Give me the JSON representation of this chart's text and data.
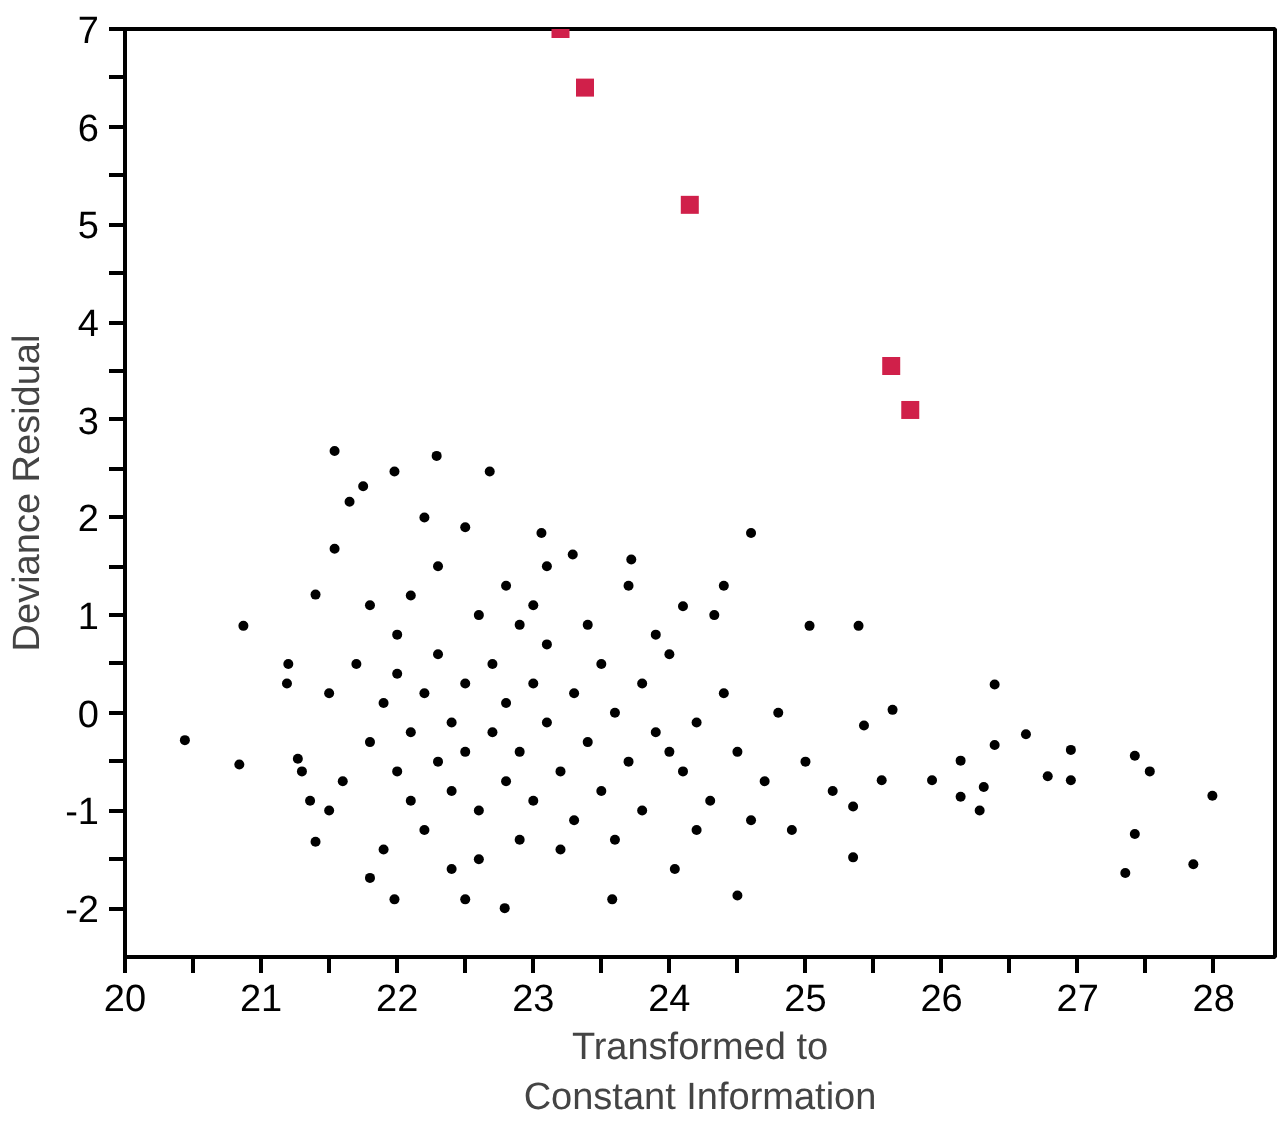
{
  "chart_data": {
    "type": "scatter",
    "xlabel": "Transformed to\nConstant Information",
    "ylabel": "Deviance Residual",
    "marker": "circle",
    "xlim": [
      20,
      28.45
    ],
    "ylim": [
      -2.5,
      7
    ],
    "xticks": [
      20,
      {
        "value": 20.5,
        "label": null
      },
      21,
      {
        "value": 21.5,
        "label": null
      },
      22,
      {
        "value": 22.5,
        "label": null
      },
      23,
      {
        "value": 23.5,
        "label": null
      },
      24,
      {
        "value": 24.5,
        "label": null
      },
      25,
      {
        "value": 25.5,
        "label": null
      },
      26,
      {
        "value": 26.5,
        "label": null
      },
      27,
      {
        "value": 27.5,
        "label": null
      },
      28
    ],
    "yticks": [
      -2,
      {
        "value": -1.5,
        "label": null
      },
      -1,
      {
        "value": -0.5,
        "label": null
      },
      0,
      {
        "value": 0.5,
        "label": null
      },
      1,
      {
        "value": 1.5,
        "label": null
      },
      2,
      {
        "value": 2.5,
        "label": null
      },
      3,
      {
        "value": 3.5,
        "label": null
      },
      4,
      {
        "value": 4.5,
        "label": null
      },
      5,
      {
        "value": 5.5,
        "label": null
      },
      6,
      {
        "value": 6.5,
        "label": null
      },
      7
    ],
    "series": [
      {
        "color": "#000000",
        "x": [
          24.6,
          26.39,
          26.62,
          26.95,
          26.95,
          26.78,
          27.42,
          27.53,
          27.99,
          27.42,
          27.35,
          27.85,
          26.14,
          26.14,
          26.28,
          26.31,
          25.93,
          25.64,
          26.39,
          25.39,
          25.03,
          25.43,
          25.35,
          24.5,
          25.56,
          25.35,
          21.54,
          22.29,
          22.68,
          21.98,
          21.65,
          21.75,
          23.06,
          23.72,
          23.29,
          21.54,
          21.4,
          20.87,
          20.44,
          20.84,
          21.19,
          21.27,
          21.36,
          21.4,
          21.8,
          21.98,
          22.79,
          23.58,
          24.04,
          24.33,
          24.1,
          22.5,
          21.7,
          21.8,
          21.9,
          22.0,
          22.0,
          22.1,
          22.1,
          22.2,
          22.2,
          22.3,
          22.3,
          22.4,
          22.4,
          22.5,
          22.5,
          22.6,
          22.6,
          22.7,
          22.7,
          22.8,
          22.8,
          22.9,
          22.9,
          23.0,
          23.0,
          23.1,
          23.1,
          23.2,
          23.3,
          23.3,
          23.4,
          23.5,
          23.5,
          23.6,
          23.7,
          23.8,
          23.8,
          23.9,
          24.0,
          24.1,
          24.2,
          24.3,
          24.4,
          24.5,
          24.7,
          24.8,
          21.6,
          21.5,
          21.5,
          21.9,
          22.1,
          22.3,
          22.4,
          22.6,
          22.8,
          23.0,
          23.2,
          23.4,
          23.6,
          23.9,
          24.2,
          22.0,
          22.5,
          22.2,
          23.1,
          24.0,
          24.6,
          25.0,
          25.2,
          24.9,
          21.8,
          21.3,
          21.2,
          22.9,
          23.7,
          24.4
        ],
        "values": [
          1.84,
          0.29,
          -0.22,
          -0.38,
          -0.69,
          -0.65,
          -0.44,
          -0.6,
          -0.85,
          -1.24,
          -1.64,
          -1.55,
          -0.49,
          -0.86,
          -1.0,
          -0.76,
          -0.69,
          0.03,
          -0.33,
          0.89,
          0.89,
          -0.13,
          -1.48,
          -1.87,
          -0.69,
          -0.96,
          2.68,
          2.63,
          2.47,
          2.47,
          2.16,
          2.32,
          1.84,
          1.57,
          1.62,
          1.68,
          1.21,
          0.89,
          -0.28,
          -0.53,
          0.3,
          -0.47,
          -0.9,
          -1.32,
          -1.69,
          -1.91,
          -2.0,
          -1.91,
          -1.6,
          1.0,
          1.09,
          -1.91,
          0.5,
          -0.3,
          0.1,
          -0.6,
          0.4,
          -0.9,
          -0.2,
          0.2,
          -1.2,
          0.6,
          -0.5,
          -0.1,
          -0.8,
          0.3,
          -0.4,
          1.0,
          -1.0,
          -0.2,
          0.5,
          -0.7,
          0.1,
          -1.3,
          -0.4,
          0.3,
          -0.9,
          -0.1,
          0.7,
          -0.6,
          -1.1,
          0.2,
          -0.3,
          0.5,
          -0.8,
          0.0,
          -0.5,
          0.3,
          -1.0,
          -0.2,
          0.6,
          -0.6,
          -0.1,
          -0.9,
          0.2,
          -0.4,
          -0.7,
          0.0,
          -0.7,
          -1.0,
          0.2,
          -1.4,
          1.2,
          1.5,
          -1.6,
          -1.5,
          1.3,
          1.1,
          -1.4,
          0.9,
          -1.3,
          0.8,
          -1.2,
          0.8,
          1.9,
          2.0,
          1.5,
          -0.4,
          -1.1,
          -0.5,
          -0.8,
          -1.2,
          1.1,
          -0.6,
          0.5,
          0.9,
          1.3,
          1.3
        ]
      },
      {
        "color": "#d0204a",
        "marker": "square",
        "x": [
          23.2,
          23.38,
          24.15,
          25.63,
          25.77
        ],
        "values": [
          7.0,
          6.4,
          5.2,
          3.55,
          3.1
        ]
      }
    ]
  }
}
